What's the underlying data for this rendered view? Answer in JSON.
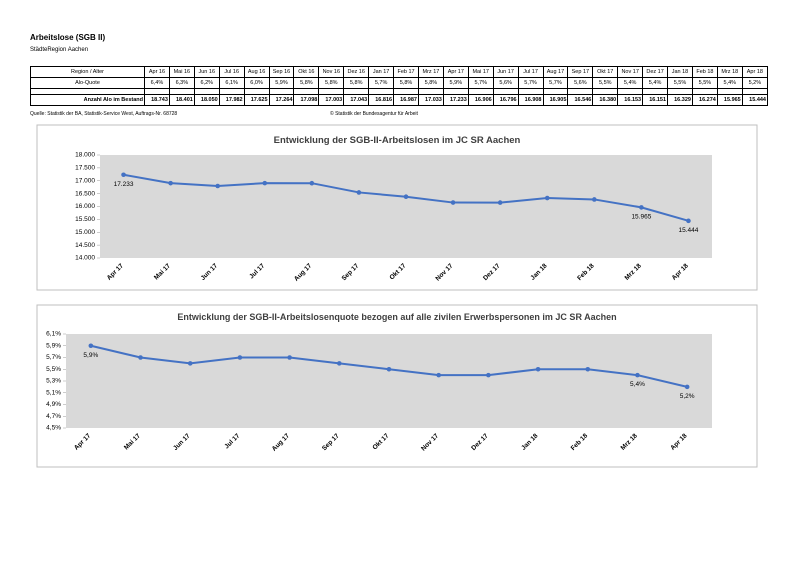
{
  "header": {
    "title": "Arbeitslose (SGB II)",
    "subtitle": "StädteRegion Aachen"
  },
  "table": {
    "columns": [
      "Region / Alter",
      "Apr 16",
      "Mai 16",
      "Jun 16",
      "Jul 16",
      "Aug 16",
      "Sep 16",
      "Okt 16",
      "Nov 16",
      "Dez 16",
      "Jan 17",
      "Feb 17",
      "Mrz 17",
      "Apr 17",
      "Mai 17",
      "Jun 17",
      "Jul 17",
      "Aug 17",
      "Sep 17",
      "Okt 17",
      "Nov 17",
      "Dez 17",
      "Jan 18",
      "Feb 18",
      "Mrz 18",
      "Apr 18"
    ],
    "rows": [
      [
        "Alo-Quote",
        "6,4%",
        "6,3%",
        "6,2%",
        "6,1%",
        "6,0%",
        "5,9%",
        "5,8%",
        "5,8%",
        "5,8%",
        "5,7%",
        "5,8%",
        "5,8%",
        "5,9%",
        "5,7%",
        "5,6%",
        "5,7%",
        "5,7%",
        "5,6%",
        "5,5%",
        "5,4%",
        "5,4%",
        "5,5%",
        "5,5%",
        "5,4%",
        "5,2%"
      ],
      [
        "Anzahl Alo im Bestand",
        "18.743",
        "18.401",
        "18.050",
        "17.982",
        "17.625",
        "17.264",
        "17.098",
        "17.003",
        "17.043",
        "16.816",
        "16.987",
        "17.033",
        "17.233",
        "16.906",
        "16.796",
        "16.908",
        "16.905",
        "16.546",
        "16.380",
        "16.153",
        "16.151",
        "16.329",
        "16.274",
        "15.965",
        "15.444"
      ]
    ]
  },
  "sources": {
    "left": "Quelle: Statistik der BA, Statistik-Service West, Auftrags-Nr. 68728",
    "right": "© Statistik der Bundesagentur für Arbeit"
  },
  "chart_data": [
    {
      "type": "line",
      "title": "Entwicklung der SGB-II-Arbeitslosen im JC SR Aachen",
      "color": "#4472c4",
      "categories": [
        "Apr 17",
        "Mai 17",
        "Jun 17",
        "Jul 17",
        "Aug 17",
        "Sep 17",
        "Okt 17",
        "Nov 17",
        "Dez 17",
        "Jan 18",
        "Feb 18",
        "Mrz 18",
        "Apr 18"
      ],
      "values": [
        17233,
        16906,
        16796,
        16908,
        16905,
        16546,
        16380,
        16153,
        16151,
        16329,
        16274,
        15965,
        15444
      ],
      "value_labels": [
        "17.233",
        null,
        null,
        null,
        null,
        null,
        null,
        null,
        null,
        null,
        null,
        "15.965",
        "15.444"
      ],
      "ylim": [
        14000,
        18000
      ],
      "yticks": [
        {
          "value": 14000,
          "label": "14.000"
        },
        {
          "value": 14500,
          "label": "14.500"
        },
        {
          "value": 15000,
          "label": "15.000"
        },
        {
          "value": 15500,
          "label": "15.500"
        },
        {
          "value": 16000,
          "label": "16.000"
        },
        {
          "value": 16500,
          "label": "16.500"
        },
        {
          "value": 17000,
          "label": "17.000"
        },
        {
          "value": 17500,
          "label": "17.500"
        },
        {
          "value": 18000,
          "label": "18.000"
        }
      ]
    },
    {
      "type": "line",
      "title": "Entwicklung der SGB-II-Arbeitslosenquote bezogen auf alle zivilen Erwerbspersonen im JC SR Aachen",
      "color": "#4472c4",
      "categories": [
        "Apr 17",
        "Mai 17",
        "Jun 17",
        "Jul 17",
        "Aug 17",
        "Sep 17",
        "Okt 17",
        "Nov 17",
        "Dez 17",
        "Jan 18",
        "Feb 18",
        "Mrz 18",
        "Apr 18"
      ],
      "values": [
        5.9,
        5.7,
        5.6,
        5.7,
        5.7,
        5.6,
        5.5,
        5.4,
        5.4,
        5.5,
        5.5,
        5.4,
        5.2
      ],
      "value_labels": [
        "5,9%",
        null,
        null,
        null,
        null,
        null,
        null,
        null,
        null,
        null,
        null,
        "5,4%",
        "5,2%"
      ],
      "ylim": [
        4.5,
        6.1
      ],
      "yticks": [
        {
          "value": 4.5,
          "label": "4,5%"
        },
        {
          "value": 4.7,
          "label": "4,7%"
        },
        {
          "value": 4.9,
          "label": "4,9%"
        },
        {
          "value": 5.1,
          "label": "5,1%"
        },
        {
          "value": 5.3,
          "label": "5,3%"
        },
        {
          "value": 5.5,
          "label": "5,5%"
        },
        {
          "value": 5.7,
          "label": "5,7%"
        },
        {
          "value": 5.9,
          "label": "5,9%"
        },
        {
          "value": 6.1,
          "label": "6,1%"
        }
      ]
    }
  ]
}
